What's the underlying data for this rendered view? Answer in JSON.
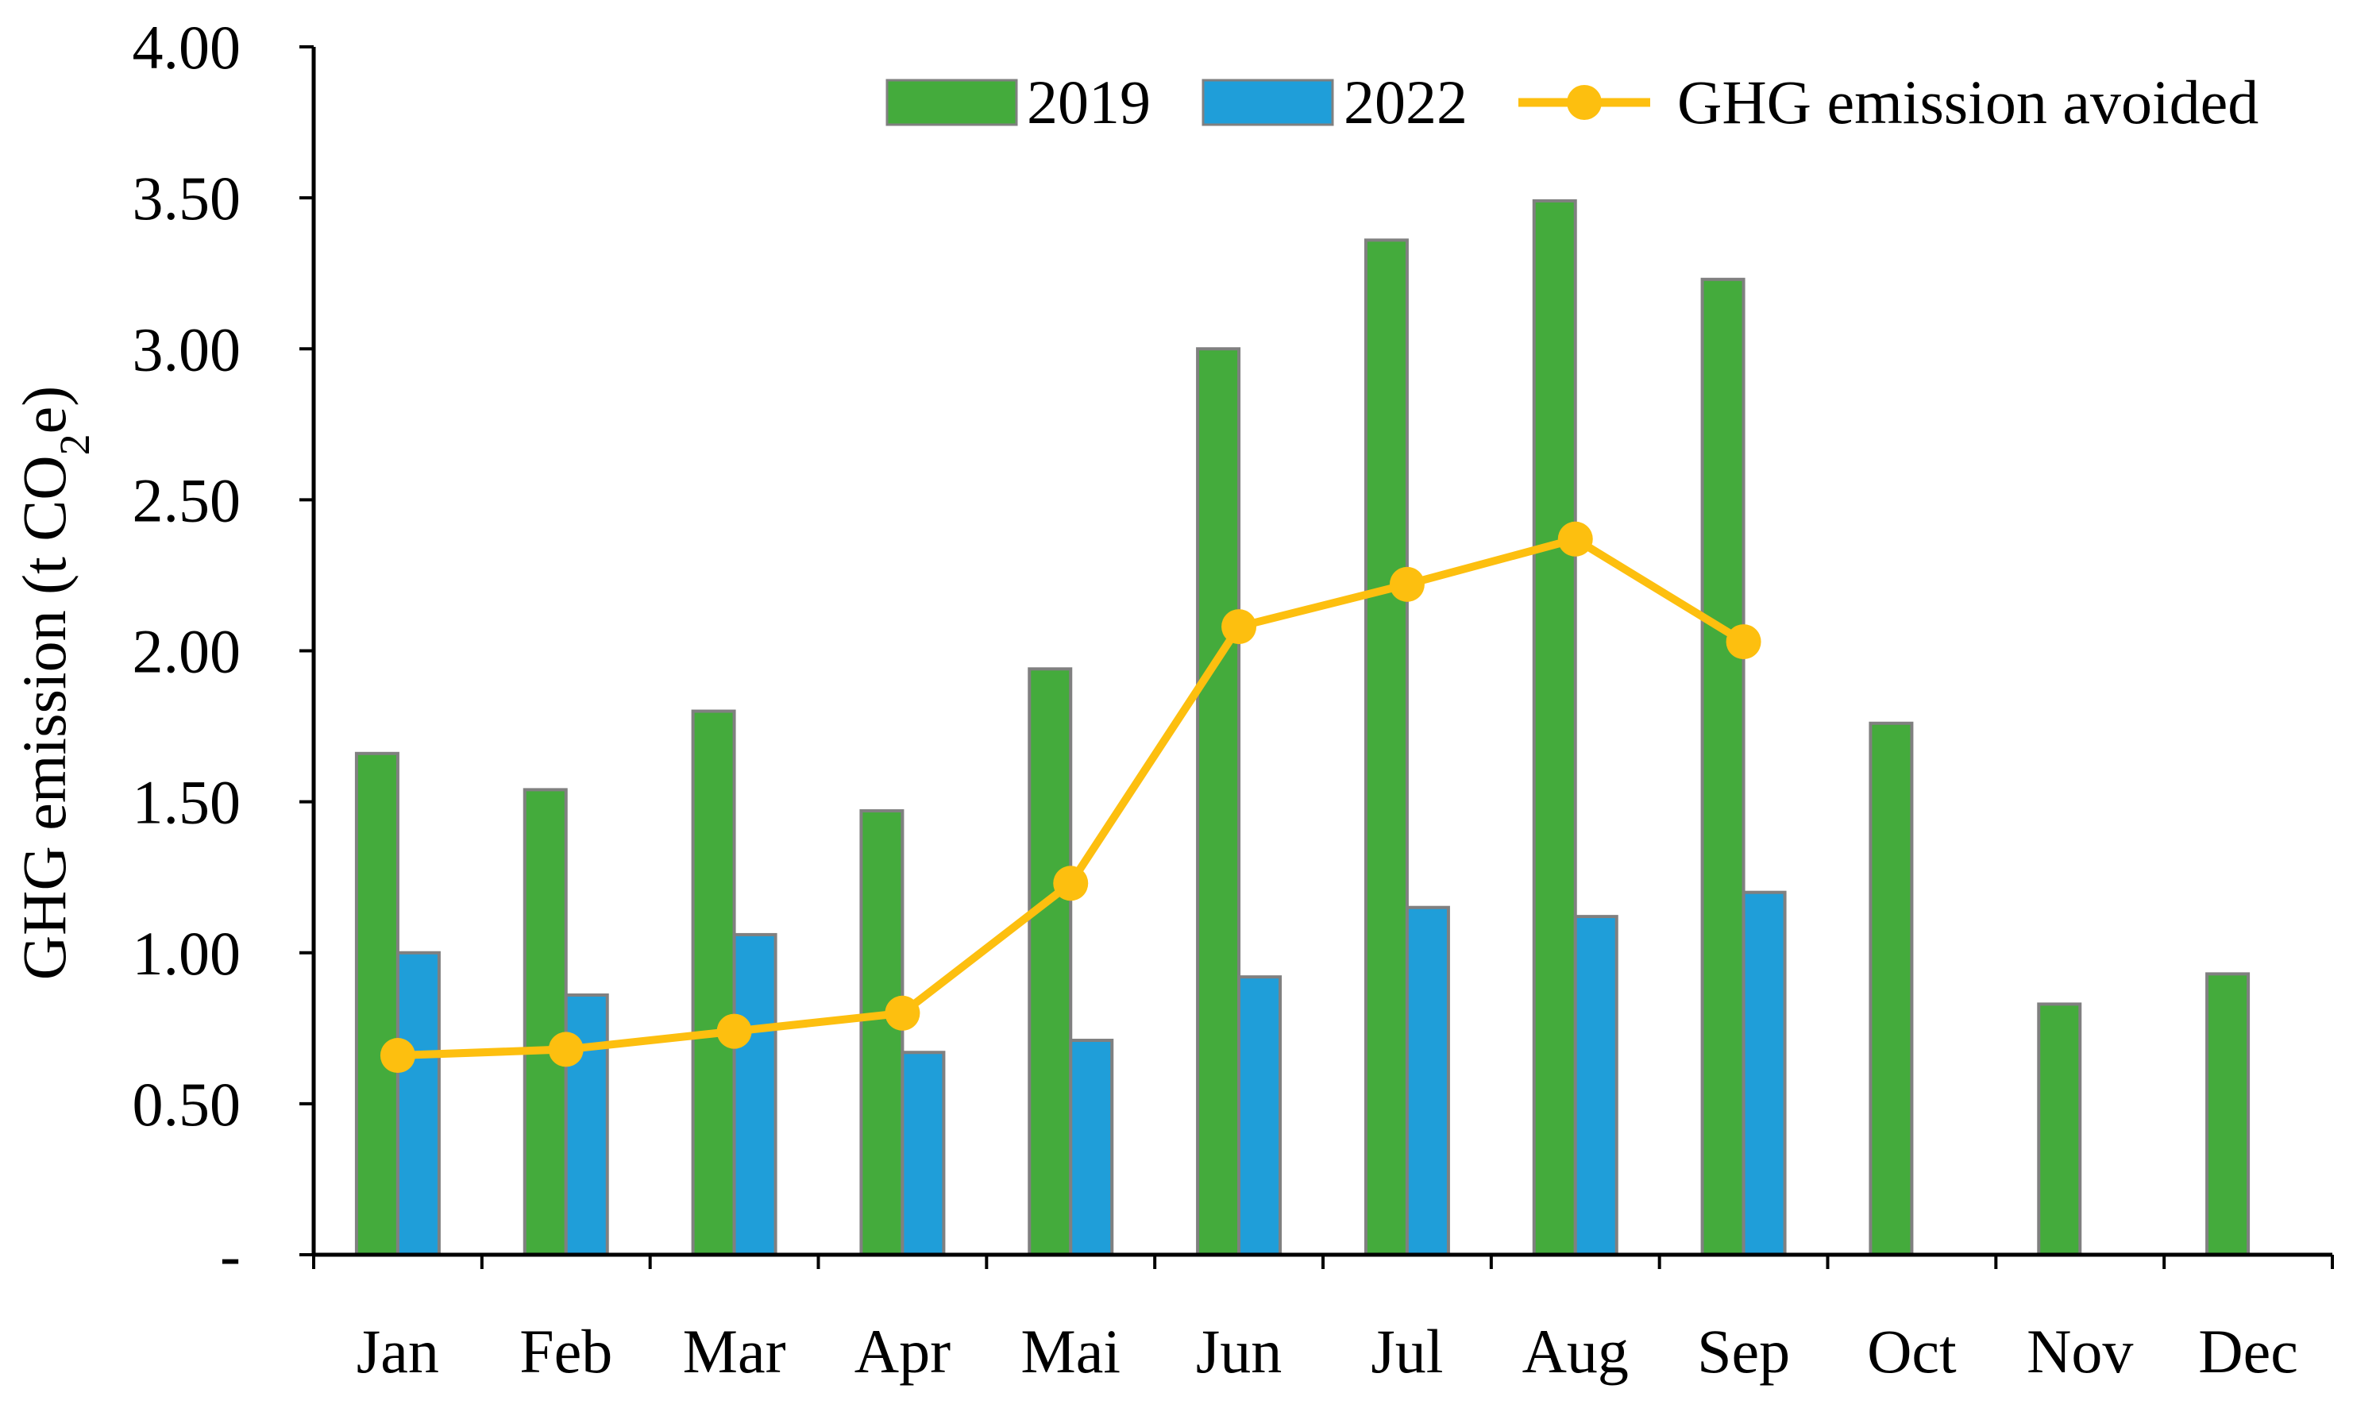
{
  "chart_data": {
    "type": "bar",
    "categories": [
      "Jan",
      "Feb",
      "Mar",
      "Apr",
      "Mai",
      "Jun",
      "Jul",
      "Aug",
      "Sep",
      "Oct",
      "Nov",
      "Dec"
    ],
    "series": [
      {
        "name": "2019",
        "kind": "bar",
        "color": "#44ab3c",
        "values": [
          1.66,
          1.54,
          1.8,
          1.47,
          1.94,
          3.0,
          3.36,
          3.49,
          3.23,
          1.76,
          0.83,
          0.93
        ]
      },
      {
        "name": "2022",
        "kind": "bar",
        "color": "#1f9ed9",
        "values": [
          1.0,
          0.86,
          1.06,
          0.67,
          0.71,
          0.92,
          1.15,
          1.12,
          1.2,
          null,
          null,
          null
        ]
      },
      {
        "name": "GHG emission avoided",
        "kind": "line",
        "color": "#fdbf0f",
        "values": [
          0.66,
          0.68,
          0.74,
          0.8,
          1.23,
          2.08,
          2.22,
          2.37,
          2.03,
          null,
          null,
          null
        ]
      }
    ],
    "ylim": [
      0,
      4
    ],
    "yticks": [
      0,
      0.5,
      1.0,
      1.5,
      2.0,
      2.5,
      3.0,
      3.5,
      4.0
    ],
    "ytick_labels": [
      "-",
      "0.50",
      "1.00",
      "1.50",
      "2.00",
      "2.50",
      "3.00",
      "3.50",
      "4.00"
    ],
    "ylabel_main": "GHG emission (t CO",
    "ylabel_sub": "2",
    "ylabel_end": "e)",
    "xlabel": "",
    "title": "",
    "legend_position": "top-right",
    "bar_edge_color": "#808080"
  }
}
